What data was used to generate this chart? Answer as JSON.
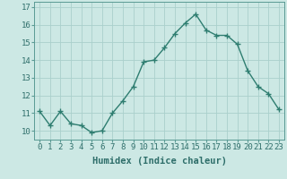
{
  "x": [
    0,
    1,
    2,
    3,
    4,
    5,
    6,
    7,
    8,
    9,
    10,
    11,
    12,
    13,
    14,
    15,
    16,
    17,
    18,
    19,
    20,
    21,
    22,
    23
  ],
  "y": [
    11.1,
    10.3,
    11.1,
    10.4,
    10.3,
    9.9,
    10.0,
    11.0,
    11.7,
    12.5,
    13.9,
    14.0,
    14.7,
    15.5,
    16.1,
    16.6,
    15.7,
    15.4,
    15.4,
    14.9,
    13.4,
    12.5,
    12.1,
    11.2
  ],
  "line_color": "#2e7d70",
  "marker": "+",
  "marker_size": 4,
  "bg_color": "#cce8e4",
  "grid_color": "#aad0cc",
  "xlabel": "Humidex (Indice chaleur)",
  "ylim": [
    9.5,
    17.3
  ],
  "yticks": [
    10,
    11,
    12,
    13,
    14,
    15,
    16,
    17
  ],
  "xticks": [
    0,
    1,
    2,
    3,
    4,
    5,
    6,
    7,
    8,
    9,
    10,
    11,
    12,
    13,
    14,
    15,
    16,
    17,
    18,
    19,
    20,
    21,
    22,
    23
  ],
  "xlabel_fontsize": 7.5,
  "tick_fontsize": 6.5,
  "line_width": 1.0
}
